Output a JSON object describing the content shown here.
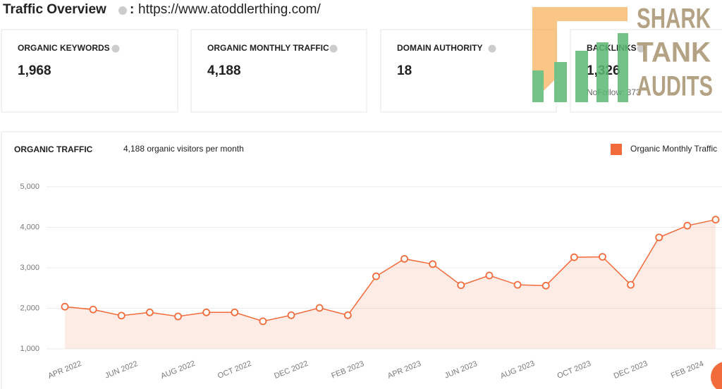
{
  "header": {
    "title": "Traffic Overview",
    "separator": ":",
    "url": "https://www.atoddlerthing.com/"
  },
  "cards": [
    {
      "label": "ORGANIC KEYWORDS",
      "value": "1,968"
    },
    {
      "label": "ORGANIC MONTHLY TRAFFIC",
      "value": "4,188"
    },
    {
      "label": "DOMAIN AUTHORITY",
      "value": "18"
    },
    {
      "label": "BACKLINKS",
      "value": "1,326",
      "note": "NoFollow: 373"
    }
  ],
  "watermark": [
    "SHARK",
    "TANK",
    "AUDITS"
  ],
  "chart_data": {
    "type": "line",
    "title": "ORGANIC TRAFFIC",
    "subtitle": "4,188 organic visitors per month",
    "categories": [
      "APR 2022",
      null,
      "JUN 2022",
      null,
      "AUG 2022",
      null,
      "OCT 2022",
      null,
      "DEC 2022",
      null,
      "FEB 2023",
      null,
      "APR 2023",
      null,
      "JUN 2023",
      null,
      "AUG 2023",
      null,
      "OCT 2023",
      null,
      "DEC 2023",
      null,
      "FEB 2024",
      null
    ],
    "series": [
      {
        "name": "Organic Monthly Traffic",
        "color": "#f26b3a",
        "values": [
          2040,
          1970,
          1820,
          1900,
          1800,
          1900,
          1900,
          1680,
          1830,
          2010,
          1830,
          2790,
          3220,
          3090,
          2570,
          2810,
          2580,
          2560,
          3260,
          3270,
          2580,
          3750,
          4040,
          4188
        ]
      }
    ],
    "ylim": [
      1000,
      5000
    ],
    "yticks": [
      {
        "value": 1000,
        "label": "1,000"
      },
      {
        "value": 2000,
        "label": "2,000"
      },
      {
        "value": 3000,
        "label": "3,000"
      },
      {
        "value": 4000,
        "label": "4,000"
      },
      {
        "value": 5000,
        "label": "5,000"
      }
    ],
    "grid": true
  }
}
